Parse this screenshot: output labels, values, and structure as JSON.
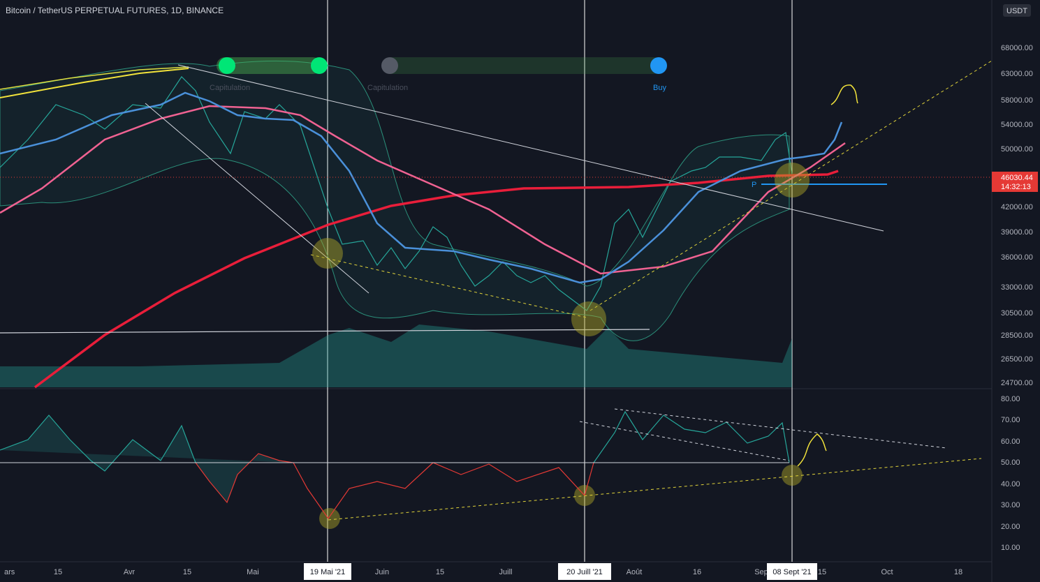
{
  "header": {
    "title": "Bitcoin / TetherUS PERPETUAL FUTURES, 1D, BINANCE",
    "currency": "USDT"
  },
  "annotations": {
    "signals": [
      "Capitulation",
      "Capitulation",
      "Buy"
    ],
    "pivot": "P"
  },
  "price_axis": {
    "labels": [
      "68000.00",
      "63000.00",
      "58000.00",
      "54000.00",
      "50000.00",
      "42000.00",
      "39000.00",
      "36000.00",
      "33000.00",
      "30500.00",
      "28500.00",
      "26500.00",
      "24700.00"
    ],
    "last_price": "46030.44",
    "countdown": "14:32:13"
  },
  "rsi_axis": {
    "labels": [
      "80.00",
      "70.00",
      "60.00",
      "50.00",
      "40.00",
      "30.00",
      "20.00",
      "10.00"
    ]
  },
  "time_axis": {
    "labels": [
      "ars",
      "15",
      "Avr",
      "15",
      "Mai",
      "Juin",
      "15",
      "Juill",
      "Août",
      "16",
      "Sep",
      "15",
      "Oct",
      "18"
    ],
    "markers": [
      "19 Mai '21",
      "20 Juill '21",
      "08 Sept '21"
    ]
  }
}
